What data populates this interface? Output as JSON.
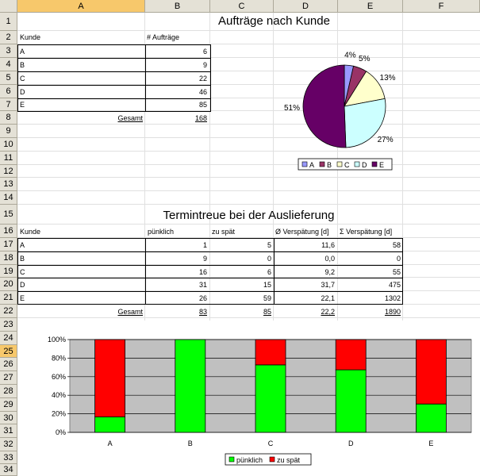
{
  "columns": [
    "A",
    "B",
    "C",
    "D",
    "E",
    "F"
  ],
  "rows": [
    "1",
    "2",
    "3",
    "4",
    "5",
    "6",
    "7",
    "8",
    "9",
    "10",
    "11",
    "12",
    "13",
    "14",
    "15",
    "16",
    "17",
    "18",
    "19",
    "20",
    "21",
    "22",
    "23",
    "24",
    "25",
    "26",
    "27",
    "28",
    "29",
    "30",
    "31",
    "32",
    "33",
    "34"
  ],
  "table1": {
    "title": "Aufträge nach Kunde",
    "header_kunde": "Kunde",
    "header_auftraege": "# Aufträge",
    "rows": [
      {
        "kunde": "A",
        "auftraege": "6"
      },
      {
        "kunde": "B",
        "auftraege": "9"
      },
      {
        "kunde": "C",
        "auftraege": "22"
      },
      {
        "kunde": "D",
        "auftraege": "46"
      },
      {
        "kunde": "E",
        "auftraege": "85"
      }
    ],
    "total_label": "Gesamt",
    "total_value": "168"
  },
  "table2": {
    "title": "Termintreue bei der Auslieferung",
    "headers": [
      "Kunde",
      "pünklich",
      "zu spät",
      "Ø Verspätung [d]",
      "Σ Verspätung [d]"
    ],
    "rows": [
      {
        "kunde": "A",
        "puenklich": "1",
        "zu_spaet": "5",
        "avg": "11,6",
        "sum": "58"
      },
      {
        "kunde": "B",
        "puenklich": "9",
        "zu_spaet": "0",
        "avg": "0,0",
        "sum": "0"
      },
      {
        "kunde": "C",
        "puenklich": "16",
        "zu_spaet": "6",
        "avg": "9,2",
        "sum": "55"
      },
      {
        "kunde": "D",
        "puenklich": "31",
        "zu_spaet": "15",
        "avg": "31,7",
        "sum": "475"
      },
      {
        "kunde": "E",
        "puenklich": "26",
        "zu_spaet": "59",
        "avg": "22,1",
        "sum": "1302"
      }
    ],
    "total": {
      "label": "Gesamt",
      "puenklich": "83",
      "zu_spaet": "85",
      "avg": "22,2",
      "sum": "1890"
    }
  },
  "chart_data": [
    {
      "type": "pie",
      "categories": [
        "A",
        "B",
        "C",
        "D",
        "E"
      ],
      "values": [
        6,
        9,
        22,
        46,
        85
      ],
      "labels": [
        "4%",
        "5%",
        "13%",
        "27%",
        "51%"
      ],
      "colors": [
        "#9999ff",
        "#993366",
        "#ffffcc",
        "#ccffff",
        "#660066"
      ],
      "legend": "bottom"
    },
    {
      "type": "bar",
      "stacked": "percent",
      "categories": [
        "A",
        "B",
        "C",
        "D",
        "E"
      ],
      "series": [
        {
          "name": "pünklich",
          "values": [
            1,
            9,
            16,
            31,
            26
          ],
          "color": "#00ff00"
        },
        {
          "name": "zu spät",
          "values": [
            5,
            0,
            6,
            15,
            59
          ],
          "color": "#ff0000"
        }
      ],
      "yticks": [
        "0%",
        "20%",
        "40%",
        "60%",
        "80%",
        "100%"
      ],
      "ylim": [
        0,
        100
      ],
      "plot_background": "#c0c0c0",
      "grid": true,
      "legend": "bottom"
    }
  ]
}
